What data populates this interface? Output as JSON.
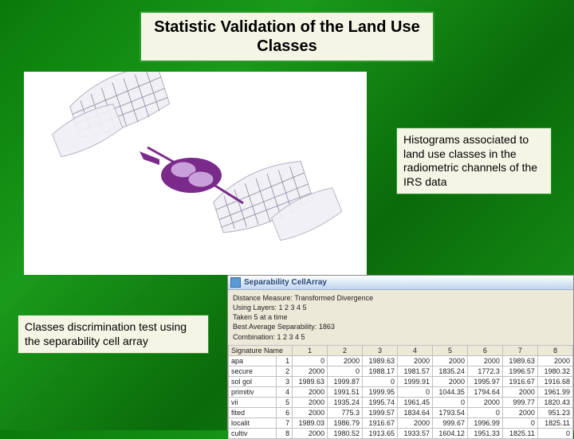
{
  "title": "Statistic Validation of the Land Use Classes",
  "callout_right": "Histograms associated to land use classes in the radiometric channels of the IRS data",
  "callout_left": "Classes discrimination test using the separability cell array",
  "cellarray": {
    "window_title": "Separability CellArray",
    "line1": "Distance Measure: Transformed Divergence",
    "line2": "Using Layers:  1 2 3 4 5",
    "line3": "Taken 5 at a time",
    "line4": "Best Average Separability: 1863",
    "line5": "Combination: 1 2 3 4 5",
    "header_name": "Signature Name",
    "columns": [
      "1",
      "2",
      "3",
      "4",
      "5",
      "6",
      "7",
      "8"
    ],
    "rows": [
      {
        "name": "apa",
        "idx": "1",
        "v": [
          "0",
          "2000",
          "1989.63",
          "2000",
          "2000",
          "2000",
          "1989.63",
          "2000"
        ]
      },
      {
        "name": "secure",
        "idx": "2",
        "v": [
          "2000",
          "0",
          "1988.17",
          "1981.57",
          "1835.24",
          "1772.3",
          "1996.57",
          "1980.32"
        ]
      },
      {
        "name": "sol gol",
        "idx": "3",
        "v": [
          "1989.63",
          "1999.87",
          "0",
          "1999.91",
          "2000",
          "1995.97",
          "1916.67",
          "1916.68"
        ]
      },
      {
        "name": "primitiv",
        "idx": "4",
        "v": [
          "2000",
          "1991.51",
          "1999.95",
          "0",
          "1044.35",
          "1794.64",
          "2000",
          "1961.99"
        ]
      },
      {
        "name": "vii",
        "idx": "5",
        "v": [
          "2000",
          "1935.24",
          "1995.74",
          "1961.45",
          "0",
          "2000",
          "999.77",
          "1820.43"
        ]
      },
      {
        "name": "fited",
        "idx": "6",
        "v": [
          "2000",
          "775.3",
          "1999.57",
          "1834.64",
          "1793.54",
          "0",
          "2000",
          "951.23"
        ]
      },
      {
        "name": "localit",
        "idx": "7",
        "v": [
          "1989.03",
          "1986.79",
          "1916.67",
          "2000",
          "999.67",
          "1996.99",
          "0",
          "1825.11"
        ]
      },
      {
        "name": "cultiv",
        "idx": "8",
        "v": [
          "2000",
          "1980.52",
          "1913.65",
          "1933.57",
          "1604.12",
          "1951.33",
          "1825.11",
          "0"
        ]
      }
    ]
  },
  "style": {
    "title_bg": "#f5f5e6",
    "title_border": "#2a9a2a",
    "callout_bg": "#f5f5e6",
    "callout_border": "#2a9a2a",
    "window_bg": "#ece9d8",
    "titlebar_gradient": [
      "#ffffff",
      "#d6e5f5",
      "#c0d4ee"
    ],
    "satellite_body": "#7a2a8a",
    "satellite_panel": "#f0f0f5",
    "slide_bg_gradient": [
      "#0a7a0a",
      "#1a9a1a",
      "#0a6a0a",
      "#1a9a1a"
    ]
  }
}
